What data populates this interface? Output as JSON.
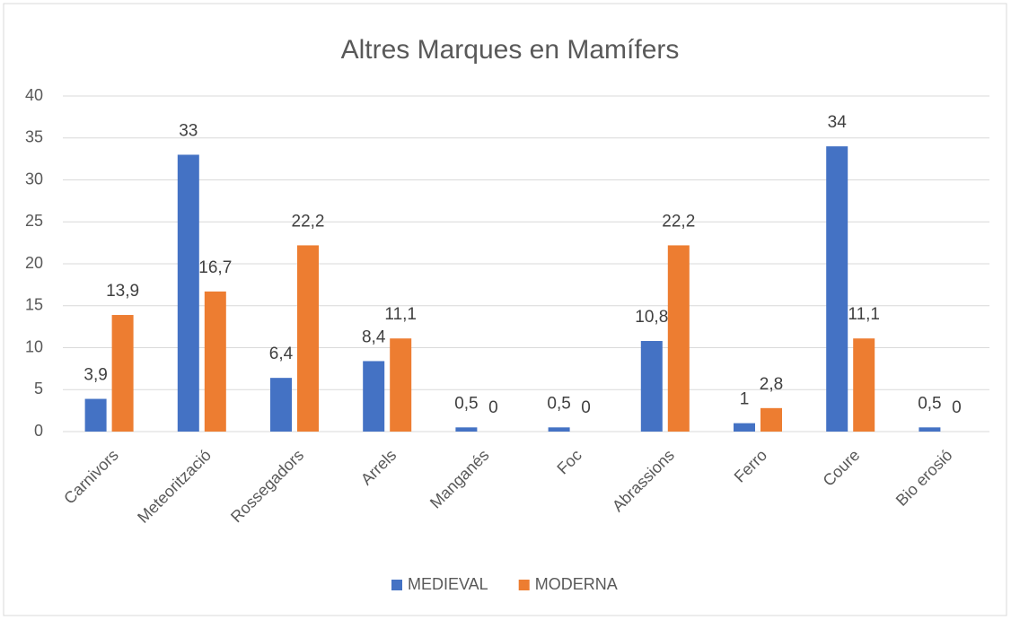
{
  "chart_data": {
    "type": "bar",
    "title": "Altres Marques en Mamífers",
    "categories": [
      "Carnivors",
      "Meteorització",
      "Rossegadors",
      "Arrels",
      "Manganés",
      "Foc",
      "Abrassions",
      "Ferro",
      "Coure",
      "Bio erosió"
    ],
    "series": [
      {
        "name": "MEDIEVAL",
        "color": "#4472c4",
        "values": [
          3.9,
          33,
          6.4,
          8.4,
          0.5,
          0.5,
          10.8,
          1,
          34,
          0.5
        ],
        "value_labels": [
          "3,9",
          "33",
          "6,4",
          "8,4",
          "0,5",
          "0,5",
          "10,8",
          "1",
          "34",
          "0,5"
        ]
      },
      {
        "name": "MODERNA",
        "color": "#ed7d31",
        "values": [
          13.9,
          16.7,
          22.2,
          11.1,
          0,
          0,
          22.2,
          2.8,
          11.1,
          0
        ],
        "value_labels": [
          "13,9",
          "16,7",
          "22,2",
          "11,1",
          "0",
          "0",
          "22,2",
          "2,8",
          "11,1",
          "0"
        ]
      }
    ],
    "ylim": [
      0,
      40
    ],
    "yticks": [
      0,
      5,
      10,
      15,
      20,
      25,
      30,
      35,
      40
    ],
    "grid": true,
    "legend": "bottom"
  }
}
